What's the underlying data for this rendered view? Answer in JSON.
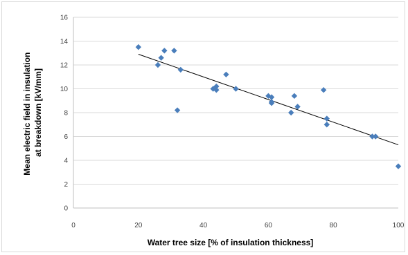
{
  "chart_data": {
    "type": "scatter",
    "title": "",
    "xlabel": "Water tree size [% of insulation thickness]",
    "ylabel_lines": [
      "Mean electric field in insulation",
      "at breakdown [kV/mm]"
    ],
    "xlim": [
      0,
      100
    ],
    "ylim": [
      0,
      16
    ],
    "x_ticks": [
      0,
      20,
      40,
      60,
      80,
      100
    ],
    "y_ticks": [
      0,
      2,
      4,
      6,
      8,
      10,
      12,
      14,
      16
    ],
    "grid": "horizontal",
    "legend": "none",
    "marker": "diamond",
    "marker_color": "#4a7ebb",
    "trendline_color": "#000000",
    "points": [
      {
        "x": 20,
        "y": 13.5
      },
      {
        "x": 26,
        "y": 12.0
      },
      {
        "x": 27,
        "y": 12.6
      },
      {
        "x": 28,
        "y": 13.2
      },
      {
        "x": 31,
        "y": 13.2
      },
      {
        "x": 32,
        "y": 8.2
      },
      {
        "x": 33,
        "y": 11.6
      },
      {
        "x": 43,
        "y": 10.0
      },
      {
        "x": 44,
        "y": 10.2
      },
      {
        "x": 44,
        "y": 9.9
      },
      {
        "x": 47,
        "y": 11.2
      },
      {
        "x": 50,
        "y": 10.0
      },
      {
        "x": 60,
        "y": 9.4
      },
      {
        "x": 61,
        "y": 9.3
      },
      {
        "x": 61,
        "y": 8.9
      },
      {
        "x": 61,
        "y": 8.8
      },
      {
        "x": 67,
        "y": 8.0
      },
      {
        "x": 68,
        "y": 9.4
      },
      {
        "x": 69,
        "y": 8.5
      },
      {
        "x": 77,
        "y": 9.9
      },
      {
        "x": 78,
        "y": 7.5
      },
      {
        "x": 78,
        "y": 7.0
      },
      {
        "x": 92,
        "y": 6.0
      },
      {
        "x": 93,
        "y": 6.0
      },
      {
        "x": 100,
        "y": 3.5
      }
    ],
    "trendline": {
      "x": [
        20,
        100
      ],
      "y": [
        12.9,
        5.3
      ]
    }
  }
}
